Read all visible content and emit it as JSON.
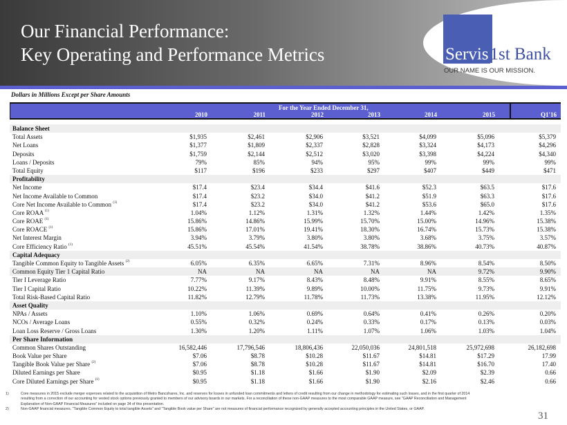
{
  "header": {
    "title_line1": "Our Financial Performance:",
    "title_line2": "Key Operating and Performance Metrics"
  },
  "logo": {
    "name_part1": "Servis",
    "name_part2": "1st Bank",
    "tagline": "OUR NAME IS OUR MISSION.",
    "color": "#4a5fb4"
  },
  "units_note": "Dollars in Millions Except per Share Amounts",
  "table": {
    "span_header": "For the Year Ended December 31,",
    "columns": [
      "2010",
      "2011",
      "2012",
      "2013",
      "2014",
      "2015",
      "Q1'16"
    ],
    "sections": [
      {
        "title": "Balance Sheet",
        "rows": [
          {
            "label": "Total Assets",
            "values": [
              "$1,935",
              "$2,461",
              "$2,906",
              "$3,521",
              "$4,099",
              "$5,096",
              "$5,379"
            ]
          },
          {
            "label": "Net Loans",
            "values": [
              "$1,377",
              "$1,809",
              "$2,337",
              "$2,828",
              "$3,324",
              "$4,173",
              "$4,296"
            ]
          },
          {
            "label": "Deposits",
            "values": [
              "$1,759",
              "$2,144",
              "$2,512",
              "$3,020",
              "$3,398",
              "$4,224",
              "$4,340"
            ]
          },
          {
            "label": "Loans / Deposits",
            "values": [
              "79%",
              "85%",
              "94%",
              "95%",
              "99%",
              "99%",
              "99%"
            ]
          },
          {
            "label": "Total Equity",
            "values": [
              "$117",
              "$196",
              "$233",
              "$297",
              "$407",
              "$449",
              "$471"
            ]
          }
        ]
      },
      {
        "title": "Profitability",
        "rows": [
          {
            "label": "Net Income",
            "values": [
              "$17.4",
              "$23.4",
              "$34.4",
              "$41.6",
              "$52.3",
              "$63.5",
              "$17.6"
            ]
          },
          {
            "label": "Net Income Available to Common",
            "values": [
              "$17.4",
              "$23.2",
              "$34.0",
              "$41.2",
              "$51.9",
              "$63.3",
              "$17.6"
            ]
          },
          {
            "label": "Core Net Income Available to Common",
            "note": "(1)",
            "values": [
              "$17.4",
              "$23.2",
              "$34.0",
              "$41.2",
              "$53.6",
              "$65.0",
              "$17.6"
            ]
          },
          {
            "label": "Core ROAA",
            "note": "(1)",
            "values": [
              "1.04%",
              "1.12%",
              "1.31%",
              "1.32%",
              "1.44%",
              "1.42%",
              "1.35%"
            ]
          },
          {
            "label": "Core ROAE",
            "note": "(1)",
            "values": [
              "15.86%",
              "14.86%",
              "15.99%",
              "15.70%",
              "15.00%",
              "14.96%",
              "15.38%"
            ]
          },
          {
            "label": "Core ROACE",
            "note": "(1)",
            "values": [
              "15.86%",
              "17.01%",
              "19.41%",
              "18.30%",
              "16.74%",
              "15.73%",
              "15.38%"
            ]
          },
          {
            "label": "Net Interest Margin",
            "values": [
              "3.94%",
              "3.79%",
              "3.80%",
              "3.80%",
              "3.68%",
              "3.75%",
              "3.57%"
            ]
          },
          {
            "label": "Core Efficiency Ratio",
            "note": "(1)",
            "values": [
              "45.51%",
              "45.54%",
              "41.54%",
              "38.78%",
              "38.86%",
              "40.73%",
              "40.87%"
            ]
          }
        ]
      },
      {
        "title": "Capital Adequacy",
        "rows": [
          {
            "label": "Tangible Common Equity to Tangible Assets",
            "note": "(2)",
            "values": [
              "6.05%",
              "6.35%",
              "6.65%",
              "7.31%",
              "8.96%",
              "8.54%",
              "8.50%"
            ]
          },
          {
            "label": "Common Equity Tier 1 Capital Ratio",
            "highlight": true,
            "values": [
              "NA",
              "NA",
              "NA",
              "NA",
              "NA",
              "9.72%",
              "9.90%"
            ]
          },
          {
            "label": "Tier I Leverage Ratio",
            "values": [
              "7.77%",
              "9.17%",
              "8.43%",
              "8.48%",
              "9.91%",
              "8.55%",
              "8.65%"
            ]
          },
          {
            "label": "Tier I Capital Ratio",
            "values": [
              "10.22%",
              "11.39%",
              "9.89%",
              "10.00%",
              "11.75%",
              "9.73%",
              "9.91%"
            ]
          },
          {
            "label": "Total Risk-Based Capital Ratio",
            "values": [
              "11.82%",
              "12.79%",
              "11.78%",
              "11.73%",
              "13.38%",
              "11.95%",
              "12.12%"
            ]
          }
        ]
      },
      {
        "title": "Asset Quality",
        "rows": [
          {
            "label": "NPAs / Assets",
            "values": [
              "1.10%",
              "1.06%",
              "0.69%",
              "0.64%",
              "0.41%",
              "0.26%",
              "0.20%"
            ]
          },
          {
            "label": "NCOs / Average Loans",
            "values": [
              "0.55%",
              "0.32%",
              "0.24%",
              "0.33%",
              "0.17%",
              "0.13%",
              "0.03%"
            ]
          },
          {
            "label": "Loan Loss Reserve / Gross Loans",
            "values": [
              "1.30%",
              "1.20%",
              "1.11%",
              "1.07%",
              "1.06%",
              "1.03%",
              "1.04%"
            ]
          }
        ]
      },
      {
        "title": "Per Share Information",
        "rows": [
          {
            "label": "Common Shares Outstanding",
            "values": [
              "16,582,446",
              "17,796,546",
              "18,806,436",
              "22,050,036",
              "24,801,518",
              "25,972,698",
              "26,182,698"
            ]
          },
          {
            "label": "Book Value per Share",
            "values": [
              "$7.06",
              "$8.78",
              "$10.28",
              "$11.67",
              "$14.81",
              "$17.29",
              "17.99"
            ]
          },
          {
            "label": "Tangible Book Value per Share",
            "note": "(2)",
            "values": [
              "$7.06",
              "$8.78",
              "$10.28",
              "$11.67",
              "$14.81",
              "$16.70",
              "17.40"
            ]
          },
          {
            "label": "Diluted Earnings per Share",
            "values": [
              "$0.95",
              "$1.18",
              "$1.66",
              "$1.90",
              "$2.09",
              "$2.39",
              "0.66"
            ]
          },
          {
            "label": "Core Diluted Earnings per Share",
            "note": "(1)",
            "values": [
              "$0.95",
              "$1.18",
              "$1.66",
              "$1.90",
              "$2.16",
              "$2.46",
              "0.66"
            ]
          }
        ]
      }
    ]
  },
  "footnotes": [
    {
      "num": "1)",
      "text": "Core measures in 2015 exclude merger expenses related to the acquisition of Metro Bancshares, Inc. and reserves for losses in unfunded loan commitments and letters of credit resulting from our change in methodology for estimating such losses, and in the first quarter of 2014 resulting from a correction of our accounting for vested stock options previously granted to members of our advisory boards in our markets. For a reconciliation of these non-GAAP measures to the most comparable GAAP measure, see \"GAAP Reconciliation and Management Explanation of Non-GAAP Financial Measures\" included on page 34 of this presentation."
    },
    {
      "num": "2)",
      "text": "Non-GAAP financial measures. \"Tangible Common Equity to total tangible Assets\" and \"Tangible Book value per Share\" are not measures of financial performance recognized by generally accepted accounting principles in the United States, or GAAP."
    }
  ],
  "page_number": "31",
  "colors": {
    "header_blue": "#5b5fcf",
    "section_gray": "#eeeeee"
  }
}
